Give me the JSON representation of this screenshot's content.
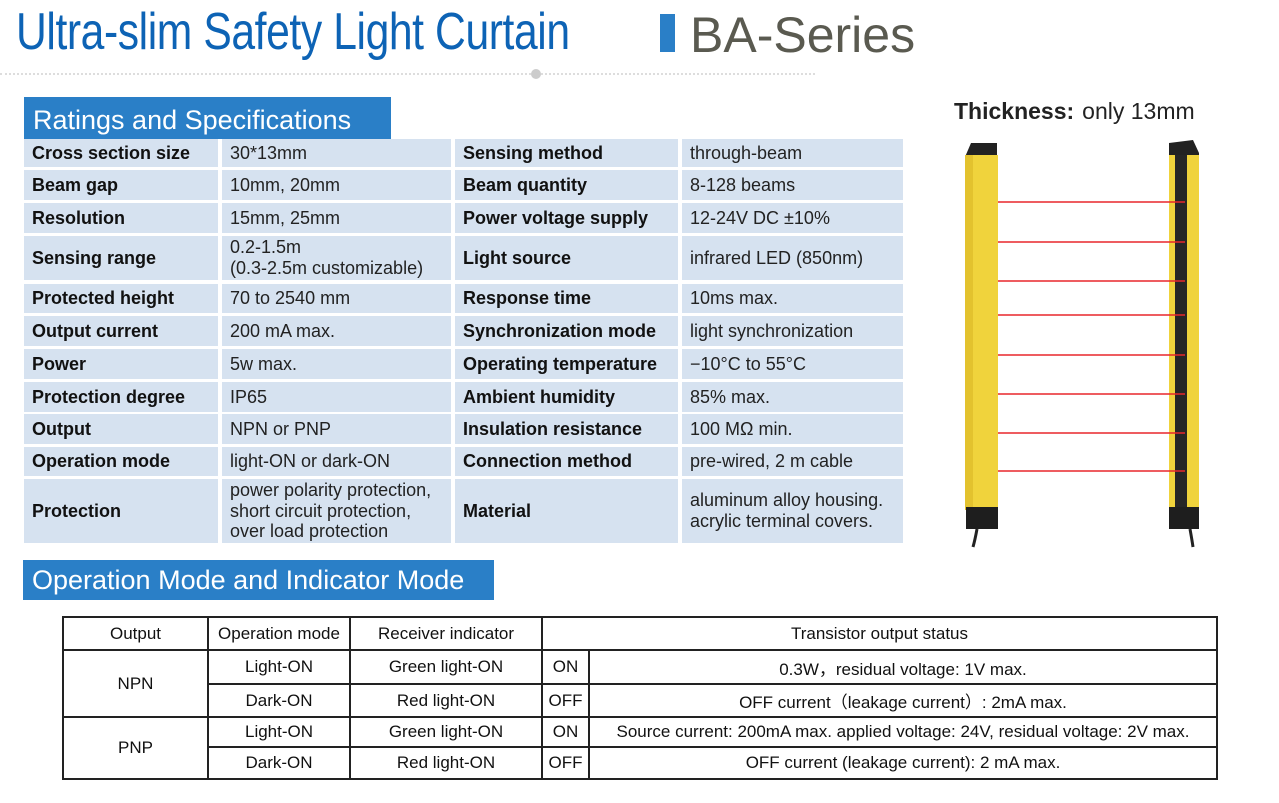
{
  "header": {
    "title": "Ultra-slim Safety Light Curtain",
    "series": "BA-Series",
    "accent": "#2a7fc7",
    "title_color": "#0d63b5"
  },
  "specs": {
    "heading": "Ratings and Specifications",
    "rows": [
      {
        "l1": "Cross section size",
        "v1": "30*13mm",
        "l2": "Sensing method",
        "v2": "through-beam"
      },
      {
        "l1": "Beam gap",
        "v1": "10mm, 20mm",
        "l2": "Beam quantity",
        "v2": "8-128 beams"
      },
      {
        "l1": "Resolution",
        "v1": "15mm, 25mm",
        "l2": "Power voltage supply",
        "v2": "12-24V DC ±10%"
      },
      {
        "l1": "Sensing range",
        "v1": "0.2-1.5m\n(0.3-2.5m customizable)",
        "l2": "Light source",
        "v2": "infrared LED (850nm)"
      },
      {
        "l1": "Protected height",
        "v1": "70 to 2540 mm",
        "l2": "Response time",
        "v2": "10ms max."
      },
      {
        "l1": "Output current",
        "v1": "200 mA max.",
        "l2": "Synchronization mode",
        "v2": "light synchronization"
      },
      {
        "l1": "Power",
        "v1": "5w max.",
        "l2": "Operating temperature",
        "v2": "−10°C to 55°C"
      },
      {
        "l1": "Protection degree",
        "v1": "IP65",
        "l2": "Ambient humidity",
        "v2": "85% max."
      },
      {
        "l1": "Output",
        "v1": "NPN or PNP",
        "l2": "Insulation resistance",
        "v2": "100 MΩ min."
      },
      {
        "l1": "Operation mode",
        "v1": "light-ON or dark-ON",
        "l2": "Connection method",
        "v2": "pre-wired, 2 m cable"
      },
      {
        "l1": "Protection",
        "v1": "power polarity protection,\nshort circuit protection,\nover load protection",
        "l2": "Material",
        "v2": "aluminum alloy housing.\nacrylic terminal covers."
      }
    ]
  },
  "product": {
    "thickness_label": "Thickness:",
    "thickness_value": "only 13mm",
    "beam_color": "#e8262b",
    "housing_color": "#f2d43a"
  },
  "modes": {
    "heading": "Operation Mode and Indicator Mode",
    "columns": [
      "Output",
      "Operation mode",
      "Receiver indicator",
      "Transistor output status"
    ],
    "groups": [
      {
        "output": "NPN",
        "rows": [
          {
            "mode": "Light-ON",
            "indicator": "Green light-ON",
            "state": "ON",
            "status": "0.3W，residual voltage: 1V max."
          },
          {
            "mode": "Dark-ON",
            "indicator": "Red light-ON",
            "state": "OFF",
            "status": "OFF current（leakage current）: 2mA max."
          }
        ]
      },
      {
        "output": "PNP",
        "rows": [
          {
            "mode": "Light-ON",
            "indicator": "Green light-ON",
            "state": "ON",
            "status": "Source current: 200mA max. applied voltage: 24V, residual voltage: 2V max."
          },
          {
            "mode": "Dark-ON",
            "indicator": "Red light-ON",
            "state": "OFF",
            "status": "OFF current (leakage current): 2 mA max."
          }
        ]
      }
    ]
  }
}
